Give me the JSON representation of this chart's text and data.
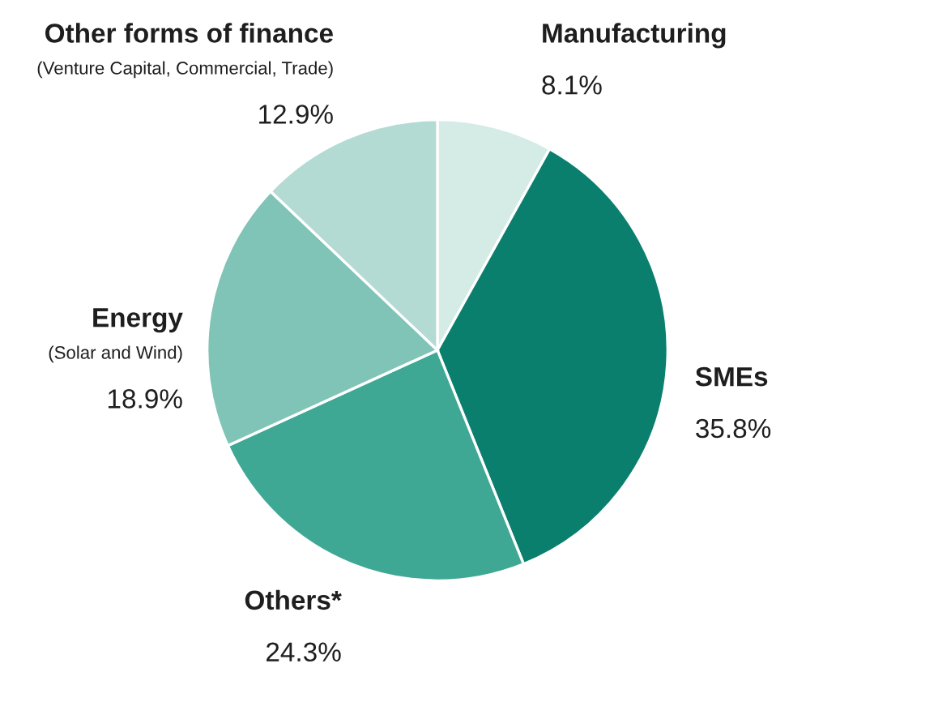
{
  "chart_data": {
    "type": "pie",
    "categories": [
      "Manufacturing",
      "SMEs",
      "Others*",
      "Energy\n(Solar and Wind)",
      "Other forms of finance\n(Venture Capital, Commercial, Trade)"
    ],
    "values": [
      8.1,
      35.8,
      24.3,
      18.9,
      12.9
    ],
    "colors": [
      "#d4ebe6",
      "#0b7f6d",
      "#3fa894",
      "#80c4b7",
      "#b3dbd3"
    ],
    "value_labels": [
      "8.1%",
      "35.8%",
      "24.3%",
      "18.9%",
      "12.9%"
    ]
  }
}
